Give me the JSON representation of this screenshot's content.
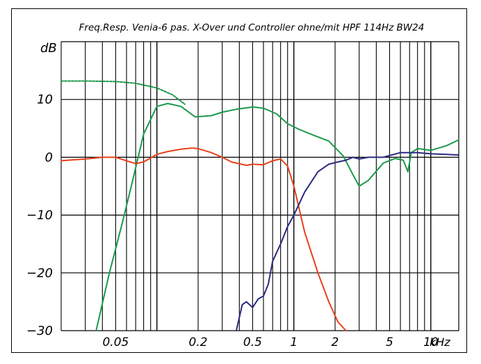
{
  "chart_data": {
    "type": "line",
    "title": "Freq.Resp. Venia-6 pas. X-Over und Controller ohne/mit HPF 114Hz BW24",
    "ylabel": "dB",
    "x_unit_label": "kHz",
    "x_scale": "log",
    "xlim": [
      0.02,
      16
    ],
    "ylim": [
      -30,
      20
    ],
    "y_ticks": [
      {
        "value": 10,
        "label": "10"
      },
      {
        "value": 0,
        "label": "0"
      },
      {
        "value": -10,
        "label": "−10"
      },
      {
        "value": -20,
        "label": "−20"
      },
      {
        "value": -30,
        "label": "−30"
      }
    ],
    "x_ticks": [
      {
        "value": 0.05,
        "label": "0.05"
      },
      {
        "value": 0.2,
        "label": "0.2"
      },
      {
        "value": 0.5,
        "label": "0.5"
      },
      {
        "value": 1,
        "label": "1"
      },
      {
        "value": 2,
        "label": "2"
      },
      {
        "value": 5,
        "label": "5"
      },
      {
        "value": 10,
        "label": "10"
      }
    ],
    "grid": true,
    "colors": {
      "green": "#1a9a4a",
      "red": "#e8401c",
      "blue": "#2a2a80",
      "grid": "#000000"
    },
    "series": [
      {
        "color": "#1a9a4a",
        "style": "dashed",
        "x": [
          0.02,
          0.03,
          0.05,
          0.07,
          0.1,
          0.13,
          0.16
        ],
        "y": [
          13.2,
          13.2,
          13.1,
          12.8,
          12.0,
          10.8,
          9.2
        ]
      },
      {
        "color": "#1a9a4a",
        "style": "solid",
        "x": [
          0.036,
          0.045,
          0.055,
          0.065,
          0.08,
          0.1,
          0.12,
          0.15,
          0.19,
          0.25,
          0.3,
          0.38,
          0.5,
          0.6,
          0.75,
          0.9,
          1.1,
          1.4,
          1.8,
          2.3,
          2.7,
          3.0,
          3.5,
          4.5,
          5.5,
          6.3,
          6.8,
          7.2,
          8.0,
          10,
          13,
          16
        ],
        "y": [
          -30,
          -20,
          -12,
          -5,
          4,
          8.8,
          9.3,
          8.8,
          7.0,
          7.2,
          7.8,
          8.3,
          8.7,
          8.5,
          7.5,
          5.8,
          4.8,
          3.8,
          2.8,
          0.2,
          -3.0,
          -5.0,
          -4.0,
          -1.0,
          -0.2,
          -0.5,
          -2.5,
          0.8,
          1.5,
          1.2,
          2.0,
          3.0
        ]
      },
      {
        "color": "#e8401c",
        "style": "solid",
        "x": [
          0.02,
          0.03,
          0.04,
          0.05,
          0.06,
          0.07,
          0.08,
          0.1,
          0.12,
          0.15,
          0.18,
          0.2,
          0.25,
          0.3,
          0.35,
          0.45,
          0.5,
          0.6,
          0.7,
          0.8,
          0.9,
          1.0,
          1.2,
          1.5,
          1.8,
          2.1,
          2.4
        ],
        "y": [
          -0.6,
          -0.3,
          0,
          0,
          -0.6,
          -1.1,
          -0.8,
          0.5,
          1.0,
          1.4,
          1.6,
          1.5,
          0.8,
          0,
          -0.8,
          -1.4,
          -1.2,
          -1.3,
          -0.6,
          -0.3,
          -1.5,
          -5.0,
          -13,
          -20,
          -25,
          -28.5,
          -30
        ]
      },
      {
        "color": "#2a2a80",
        "style": "solid",
        "x": [
          0.38,
          0.42,
          0.45,
          0.5,
          0.55,
          0.6,
          0.65,
          0.7,
          0.8,
          0.9,
          1.0,
          1.2,
          1.5,
          1.8,
          2.1,
          2.4,
          2.7,
          3.0,
          3.5,
          4.5,
          6,
          8,
          10,
          13,
          16
        ],
        "y": [
          -30,
          -25.5,
          -25,
          -26,
          -24.5,
          -24,
          -22,
          -18,
          -15,
          -12,
          -10,
          -6,
          -2.5,
          -1.2,
          -0.8,
          -0.5,
          0,
          -0.3,
          0,
          0,
          0.8,
          0.8,
          0.6,
          0.5,
          0.4
        ]
      }
    ]
  }
}
